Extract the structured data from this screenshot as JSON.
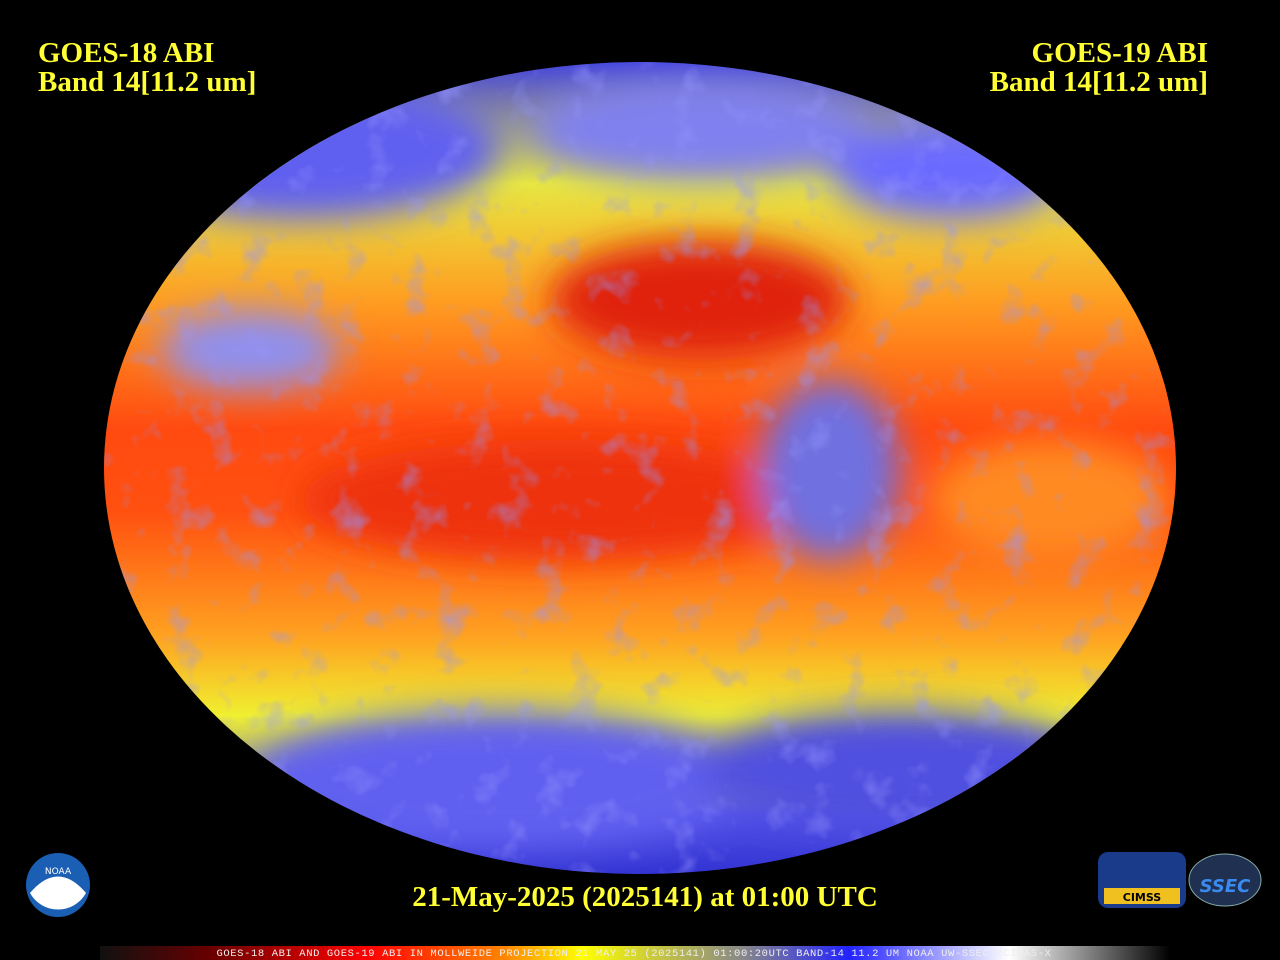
{
  "header": {
    "left": {
      "line1": "GOES-18 ABI",
      "line2": "Band 14[11.2 um]"
    },
    "right": {
      "line1": "GOES-19 ABI",
      "line2": "Band 14[11.2 um]"
    }
  },
  "date": "21-May-2025 (2025141) at 01:00 UTC",
  "caption": "GOES-18 ABI AND GOES-19 ABI IN MOLLWEIDE PROJECTION 21 MAY 25 (2025141) 01:00:20UTC BAND-14 11.2 UM NOAA UW-SSEC MCIDAS-X",
  "logos": {
    "noaa": "NOAA",
    "cimss": "CIMSS",
    "ssec": "SSEC"
  }
}
